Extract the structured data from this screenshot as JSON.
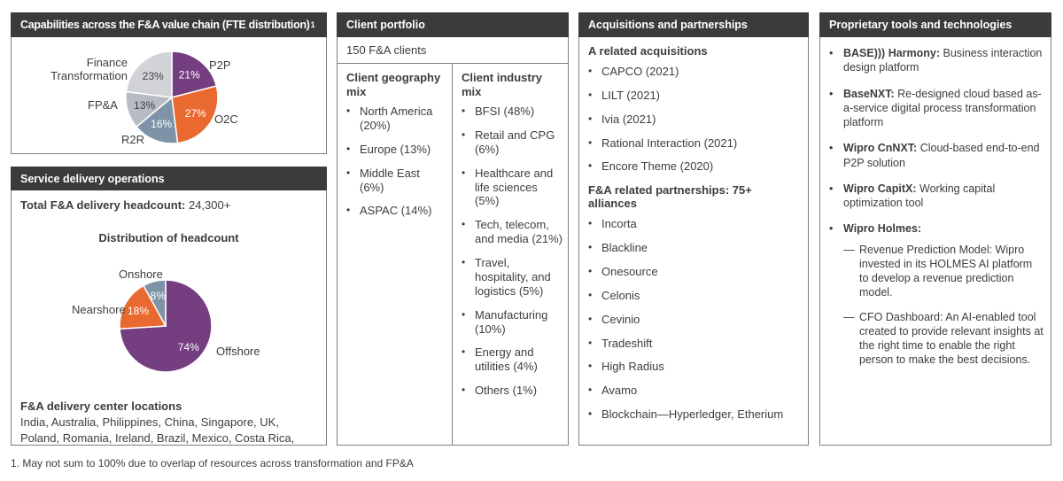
{
  "icons": {
    "bullet": "•",
    "dash": "—"
  },
  "colors": {
    "header_bg": "#3b3b3b",
    "purple": "#753E80",
    "orange": "#E96A30",
    "slate": "#7E93A7",
    "gray_mid": "#B7BBC4",
    "gray_light": "#D2D3D8"
  },
  "panels": {
    "capabilities": {
      "title": "Capabilities across the F&A value chain (FTE distribution)",
      "title_superscript": "1",
      "pie_labels": {
        "finance_transformation": "Finance Transformation",
        "p2p": "P2P",
        "o2c": "O2C",
        "r2r": "R2R",
        "fpa": "FP&A"
      }
    },
    "service_delivery": {
      "title": "Service delivery operations",
      "headcount_label": "Total F&A delivery headcount:",
      "headcount_value": " 24,300+",
      "chart_title": "Distribution of headcount",
      "pie_labels": {
        "onshore": "Onshore",
        "nearshore": "Nearshore",
        "offshore": "Offshore"
      },
      "locations_title": "F&A delivery center locations",
      "locations": "India, Australia, Philippines, China, Singapore, UK, Poland, Romania, Ireland, Brazil, Mexico, Costa Rica, USA"
    },
    "client_portfolio": {
      "title": "Client portfolio",
      "clients_count": "150 F&A clients",
      "geography": {
        "title": "Client geography mix",
        "items": [
          "North America (20%)",
          "Europe (13%)",
          "Middle East (6%)",
          "ASPAC (14%)"
        ]
      },
      "industry": {
        "title": "Client industry mix",
        "items": [
          "BFSI (48%)",
          "Retail and CPG (6%)",
          "Healthcare and life sciences (5%)",
          "Tech, telecom, and media (21%)",
          "Travel, hospitality, and logistics (5%)",
          "Manufacturing (10%)",
          "Energy and utilities (4%)",
          "Others (1%)"
        ]
      }
    },
    "acquisitions": {
      "title": "Acquisitions and partnerships",
      "acquisitions_title": "A related acquisitions",
      "acquisitions": [
        "CAPCO (2021)",
        "LILT (2021)",
        "Ivia (2021)",
        "Rational Interaction (2021)",
        "Encore Theme (2020)"
      ],
      "partnerships_title": "F&A related partnerships: 75+ alliances",
      "partnerships": [
        "Incorta",
        "Blackline",
        "Onesource",
        "Celonis",
        "Cevinio",
        "Tradeshift",
        "High Radius",
        "Avamo",
        "Blockchain—Hyperledger, Etherium"
      ]
    },
    "tools": {
      "title": "Proprietary tools and technologies",
      "items": [
        {
          "name": "BASE))) Harmony:",
          "desc": " Business interaction design platform",
          "subitems": []
        },
        {
          "name": "BaseNXT:",
          "desc": " Re-designed cloud based as-a-service digital process transformation platform",
          "subitems": []
        },
        {
          "name": "Wipro CnNXT:",
          "desc": " Cloud-based end-to-end P2P solution",
          "subitems": []
        },
        {
          "name": "Wipro CapitX:",
          "desc": " Working capital optimization tool",
          "subitems": []
        },
        {
          "name": "Wipro Holmes:",
          "desc": "",
          "subitems": [
            "Revenue Prediction Model: Wipro invested in its HOLMES AI platform to develop a revenue prediction model.",
            "CFO Dashboard: An AI-enabled tool created to provide relevant insights at the right time to enable the right person to make the best decisions."
          ]
        }
      ]
    }
  },
  "footnote": "1. May not sum to 100% due to overlap of resources across transformation and FP&A",
  "chart_data": [
    {
      "type": "pie",
      "title": "Capabilities across the F&A value chain (FTE distribution)",
      "labels": [
        "P2P",
        "O2C",
        "R2R",
        "FP&A",
        "Finance Transformation"
      ],
      "values": [
        21,
        27,
        16,
        13,
        23
      ],
      "unit": "%",
      "colors": [
        "#753E80",
        "#E96A30",
        "#7E93A7",
        "#B7BBC4",
        "#D2D3D8"
      ],
      "start_angle_deg": 0,
      "direction": "clockwise",
      "label_radius": 0.62,
      "legend_position": "outside-callouts"
    },
    {
      "type": "pie",
      "title": "Distribution of headcount",
      "labels": [
        "Offshore",
        "Nearshore",
        "Onshore"
      ],
      "values": [
        74,
        18,
        8
      ],
      "unit": "%",
      "colors": [
        "#753E80",
        "#E96A30",
        "#7E93A7"
      ],
      "start_angle_deg": 0,
      "direction": "clockwise",
      "label_radius": 0.68,
      "legend_position": "outside-callouts"
    }
  ]
}
